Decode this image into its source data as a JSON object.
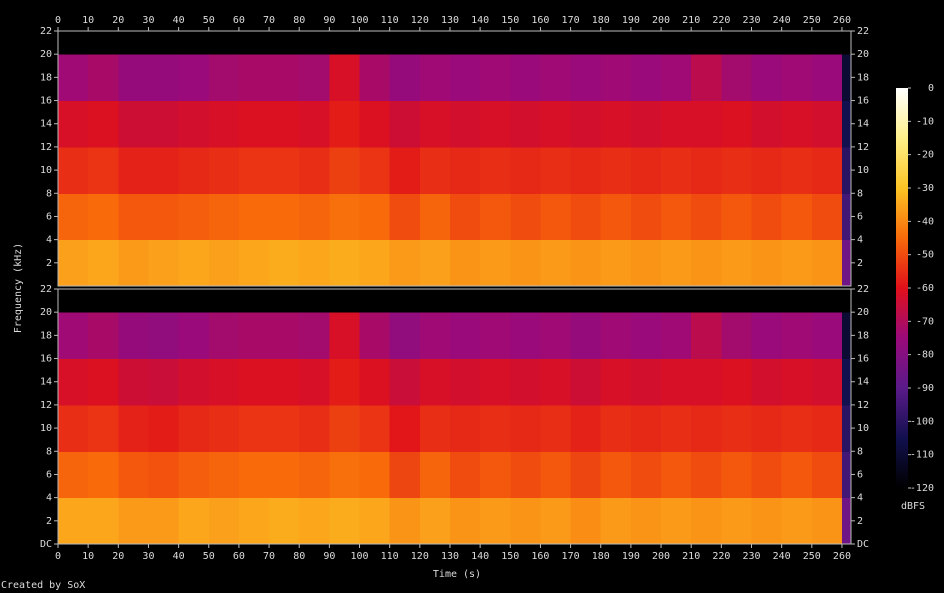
{
  "chart_data": {
    "type": "spectrogram",
    "x_label": "Time (s)",
    "y_label": "Frequency (kHz)",
    "footer": "Created by SoX",
    "xlim": [
      0,
      263
    ],
    "xticks": [
      0,
      10,
      20,
      30,
      40,
      50,
      60,
      70,
      80,
      90,
      100,
      110,
      120,
      130,
      140,
      150,
      160,
      170,
      180,
      190,
      200,
      210,
      220,
      230,
      240,
      250,
      260
    ],
    "ylim": [
      0,
      22
    ],
    "time_bins": [
      0,
      10,
      20,
      30,
      40,
      50,
      60,
      70,
      80,
      90,
      100,
      110,
      120,
      130,
      140,
      150,
      160,
      170,
      180,
      190,
      200,
      210,
      220,
      230,
      240,
      250,
      260,
      263
    ],
    "freq_bins": [
      0,
      4,
      8,
      12,
      16,
      20,
      22
    ],
    "colormap": [
      "#000000",
      "#12104e",
      "#5a1a8a",
      "#9a0a7a",
      "#e0101a",
      "#f86a0a",
      "#fcc424",
      "#fff08a",
      "#ffffff"
    ],
    "colorbar": {
      "label": "dBFS",
      "lim": [
        -120,
        0
      ],
      "ticks": [
        0,
        -10,
        -20,
        -30,
        -40,
        -50,
        -60,
        -70,
        -80,
        -90,
        -100,
        -110,
        -120
      ]
    },
    "channels": [
      {
        "yticks": [
          2,
          4,
          6,
          8,
          10,
          12,
          14,
          16,
          18,
          20,
          22
        ],
        "values": [
          [
            -36,
            -35,
            -37,
            -36,
            -35,
            -36,
            -35,
            -34,
            -35,
            -34,
            -35,
            -37,
            -36,
            -38,
            -37,
            -38,
            -37,
            -38,
            -37,
            -38,
            -37,
            -38,
            -37,
            -38,
            -37,
            -38,
            -85
          ],
          [
            -46,
            -45,
            -48,
            -48,
            -47,
            -46,
            -45,
            -45,
            -46,
            -44,
            -45,
            -50,
            -46,
            -50,
            -48,
            -50,
            -48,
            -50,
            -48,
            -50,
            -48,
            -50,
            -48,
            -50,
            -48,
            -50,
            -95
          ],
          [
            -55,
            -54,
            -57,
            -57,
            -56,
            -55,
            -54,
            -54,
            -55,
            -52,
            -54,
            -58,
            -55,
            -56,
            -55,
            -56,
            -55,
            -56,
            -55,
            -56,
            -55,
            -56,
            -55,
            -56,
            -55,
            -56,
            -100
          ],
          [
            -62,
            -61,
            -64,
            -64,
            -63,
            -62,
            -61,
            -61,
            -62,
            -58,
            -61,
            -64,
            -62,
            -63,
            -62,
            -63,
            -62,
            -63,
            -62,
            -63,
            -62,
            -62,
            -61,
            -63,
            -62,
            -63,
            -105
          ],
          [
            -74,
            -72,
            -76,
            -76,
            -75,
            -73,
            -72,
            -72,
            -73,
            -62,
            -72,
            -76,
            -74,
            -75,
            -74,
            -75,
            -74,
            -75,
            -74,
            -75,
            -74,
            -68,
            -73,
            -75,
            -74,
            -75,
            -110
          ],
          [
            -120,
            -120,
            -120,
            -120,
            -120,
            -120,
            -120,
            -120,
            -120,
            -120,
            -120,
            -120,
            -120,
            -120,
            -120,
            -120,
            -120,
            -120,
            -120,
            -120,
            -120,
            -120,
            -120,
            -120,
            -120,
            -120,
            -120
          ]
        ]
      },
      {
        "yticks": [
          {
            "value": 0,
            "label": "DC"
          },
          2,
          4,
          6,
          8,
          10,
          12,
          14,
          16,
          18,
          20,
          22
        ],
        "values": [
          [
            -35,
            -35,
            -37,
            -37,
            -35,
            -36,
            -35,
            -34,
            -35,
            -34,
            -35,
            -38,
            -36,
            -38,
            -37,
            -38,
            -37,
            -39,
            -37,
            -38,
            -37,
            -38,
            -37,
            -38,
            -37,
            -38,
            -85
          ],
          [
            -46,
            -45,
            -48,
            -49,
            -47,
            -46,
            -45,
            -45,
            -46,
            -44,
            -45,
            -51,
            -46,
            -50,
            -48,
            -50,
            -48,
            -51,
            -48,
            -50,
            -48,
            -50,
            -48,
            -50,
            -48,
            -50,
            -95
          ],
          [
            -55,
            -54,
            -57,
            -58,
            -56,
            -55,
            -54,
            -54,
            -55,
            -52,
            -54,
            -59,
            -55,
            -56,
            -55,
            -56,
            -55,
            -57,
            -55,
            -56,
            -55,
            -56,
            -55,
            -56,
            -55,
            -56,
            -100
          ],
          [
            -62,
            -61,
            -64,
            -65,
            -63,
            -62,
            -61,
            -61,
            -62,
            -58,
            -61,
            -65,
            -62,
            -63,
            -62,
            -63,
            -62,
            -64,
            -62,
            -63,
            -62,
            -62,
            -61,
            -63,
            -62,
            -63,
            -105
          ],
          [
            -74,
            -72,
            -76,
            -77,
            -75,
            -73,
            -72,
            -72,
            -73,
            -62,
            -72,
            -77,
            -74,
            -75,
            -74,
            -75,
            -74,
            -76,
            -74,
            -75,
            -74,
            -68,
            -73,
            -75,
            -74,
            -75,
            -110
          ],
          [
            -120,
            -120,
            -120,
            -120,
            -120,
            -120,
            -120,
            -120,
            -120,
            -120,
            -120,
            -120,
            -120,
            -120,
            -120,
            -120,
            -120,
            -120,
            -120,
            -120,
            -120,
            -120,
            -120,
            -120,
            -120,
            -120,
            -120
          ]
        ]
      }
    ]
  }
}
